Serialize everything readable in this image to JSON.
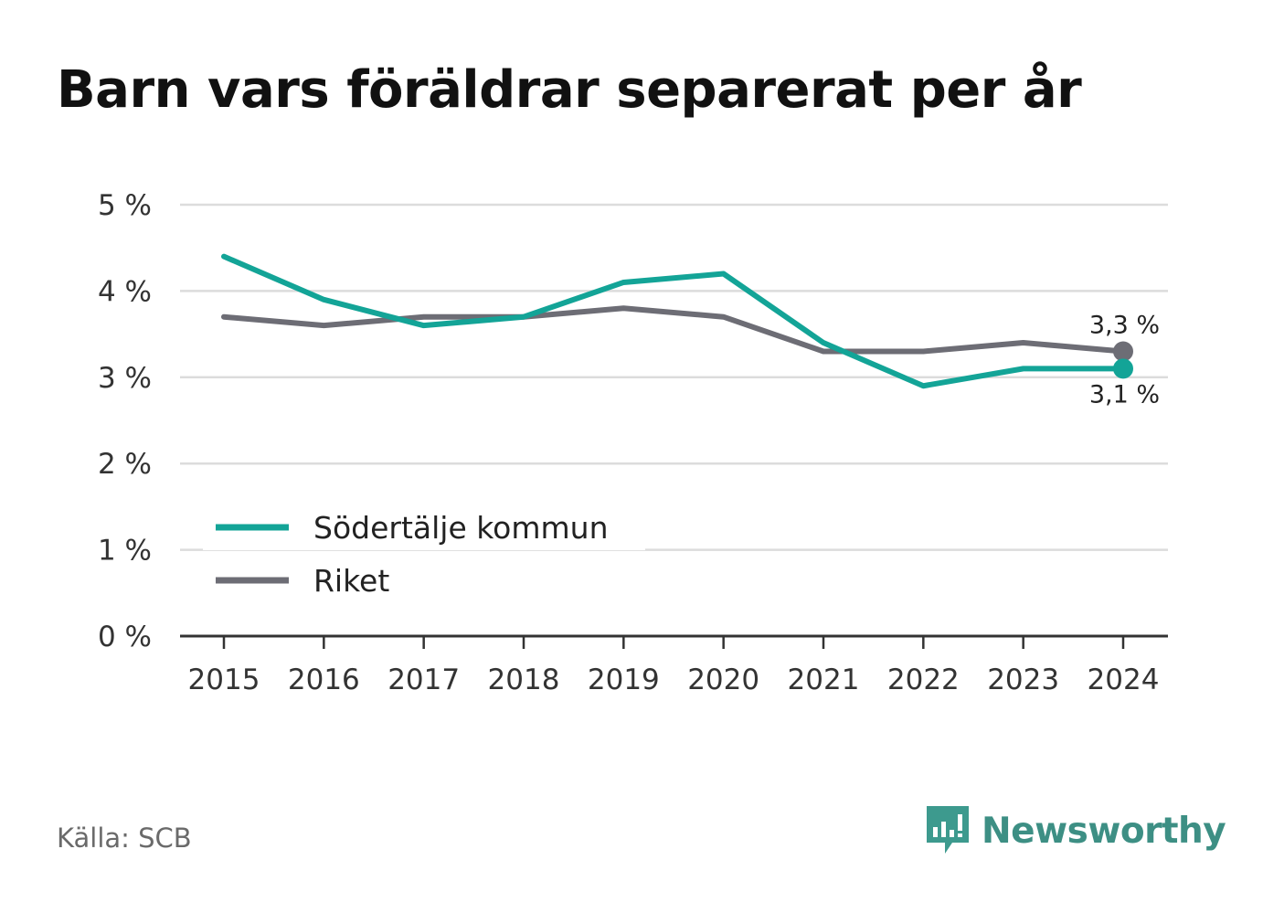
{
  "title": "Barn vars föräldrar separerat per år",
  "source": "Källa: SCB",
  "brand": {
    "name": "Newsworthy",
    "icon": "newsworthy-logo-icon",
    "color": "#3d9a8e"
  },
  "chart_data": {
    "type": "line",
    "title": "Barn vars föräldrar separerat per år",
    "x": [
      "2015",
      "2016",
      "2017",
      "2018",
      "2019",
      "2020",
      "2021",
      "2022",
      "2023",
      "2024"
    ],
    "ylim": [
      0,
      5
    ],
    "yticks": [
      "0 %",
      "1 %",
      "2 %",
      "3 %",
      "4 %",
      "5 %"
    ],
    "grid": true,
    "legend_position": "bottom-left",
    "series": [
      {
        "name": "Södertälje kommun",
        "color": "#13a497",
        "values": [
          4.4,
          3.9,
          3.6,
          3.7,
          4.1,
          4.2,
          3.4,
          2.9,
          3.1,
          3.1
        ],
        "end_label": "3,1 %"
      },
      {
        "name": "Riket",
        "color": "#6d6d75",
        "values": [
          3.7,
          3.6,
          3.7,
          3.7,
          3.8,
          3.7,
          3.3,
          3.3,
          3.4,
          3.3
        ],
        "end_label": "3,3 %"
      }
    ]
  }
}
